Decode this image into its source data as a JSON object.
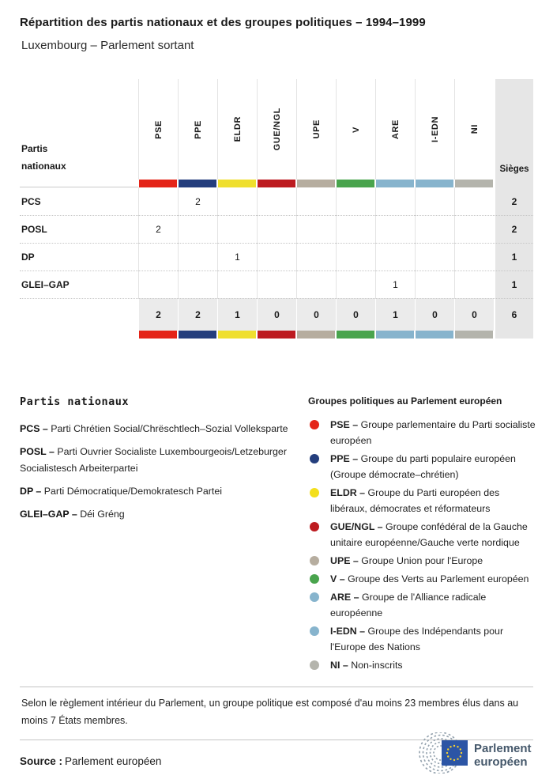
{
  "title": "Répartition des partis nationaux et des groupes politiques – 1994–1999",
  "subtitle": "Luxembourg – Parlement sortant",
  "table": {
    "corner_label": "Partis nationaux",
    "seats_label": "Sièges",
    "groups": [
      {
        "code": "PSE",
        "color": "#e42418"
      },
      {
        "code": "PPE",
        "color": "#243e7d"
      },
      {
        "code": "ELDR",
        "color": "#efdf2e"
      },
      {
        "code": "GUE/NGL",
        "color": "#bd1b20"
      },
      {
        "code": "UPE",
        "color": "#b6ad9f"
      },
      {
        "code": "V",
        "color": "#49a44d"
      },
      {
        "code": "ARE",
        "color": "#87b4cd"
      },
      {
        "code": "I-EDN",
        "color": "#87b4cd"
      },
      {
        "code": "NI",
        "color": "#b4b4ac"
      }
    ],
    "rows": [
      {
        "party": "PCS",
        "values": [
          "",
          "2",
          "",
          "",
          "",
          "",
          "",
          "",
          ""
        ],
        "seats": "2"
      },
      {
        "party": "POSL",
        "values": [
          "2",
          "",
          "",
          "",
          "",
          "",
          "",
          "",
          ""
        ],
        "seats": "2"
      },
      {
        "party": "DP",
        "values": [
          "",
          "",
          "1",
          "",
          "",
          "",
          "",
          "",
          ""
        ],
        "seats": "1"
      },
      {
        "party": "GLEI–GAP",
        "values": [
          "",
          "",
          "",
          "",
          "",
          "",
          "1",
          "",
          ""
        ],
        "seats": "1"
      }
    ],
    "totals": {
      "values": [
        "2",
        "2",
        "1",
        "0",
        "0",
        "0",
        "1",
        "0",
        "0"
      ],
      "seats": "6"
    }
  },
  "chart_data": {
    "type": "table",
    "title": "Répartition des partis nationaux et des groupes politiques – 1994–1999",
    "subtitle": "Luxembourg – Parlement sortant",
    "columns": [
      "PSE",
      "PPE",
      "ELDR",
      "GUE/NGL",
      "UPE",
      "V",
      "ARE",
      "I-EDN",
      "NI",
      "Sièges"
    ],
    "rows": [
      {
        "party": "PCS",
        "PPE": 2,
        "Sièges": 2
      },
      {
        "party": "POSL",
        "PSE": 2,
        "Sièges": 2
      },
      {
        "party": "DP",
        "ELDR": 1,
        "Sièges": 1
      },
      {
        "party": "GLEI–GAP",
        "ARE": 1,
        "Sièges": 1
      }
    ],
    "totals": {
      "PSE": 2,
      "PPE": 2,
      "ELDR": 1,
      "GUE/NGL": 0,
      "UPE": 0,
      "V": 0,
      "ARE": 1,
      "I-EDN": 0,
      "NI": 0,
      "Sièges": 6
    }
  },
  "legend_parties": {
    "heading": "Partis nationaux",
    "items": [
      {
        "abbr": "PCS –",
        "name": "Parti Chrétien Social/Chrëschtlech–Sozial Volleksparte"
      },
      {
        "abbr": "POSL –",
        "name": "Parti Ouvrier Socialiste Luxembourgeois/Letzeburger Socialistesch Arbeiterpartei"
      },
      {
        "abbr": "DP –",
        "name": "Parti Démocratique/Demokratesch Partei"
      },
      {
        "abbr": "GLEI–GAP –",
        "name": "Déi Gréng"
      }
    ]
  },
  "legend_groups": {
    "heading": "Groupes politiques au Parlement européen",
    "items": [
      {
        "abbr": "PSE –",
        "name": "Groupe parlementaire du Parti socialiste européen",
        "color": "#e42418"
      },
      {
        "abbr": "PPE –",
        "name": "Groupe du parti populaire européen (Groupe démocrate–chrétien)",
        "color": "#243e7d"
      },
      {
        "abbr": "ELDR –",
        "name": "Groupe du Parti européen des libéraux, démocrates et réformateurs",
        "color": "#f3df1c"
      },
      {
        "abbr": "GUE/NGL –",
        "name": "Groupe confédéral de la Gauche unitaire européenne/Gauche verte nordique",
        "color": "#bd1b20"
      },
      {
        "abbr": "UPE –",
        "name": "Groupe Union pour l'Europe",
        "color": "#b6ad9f"
      },
      {
        "abbr": "V –",
        "name": "Groupe des Verts au Parlement européen",
        "color": "#49a44d"
      },
      {
        "abbr": "ARE –",
        "name": "Groupe de l'Alliance radicale européenne",
        "color": "#87b4cd"
      },
      {
        "abbr": "I-EDN –",
        "name": "Groupe des Indépendants pour l'Europe des Nations",
        "color": "#87b4cd"
      },
      {
        "abbr": "NI –",
        "name": "Non-inscrits",
        "color": "#b4b4ac"
      }
    ]
  },
  "note": "Selon le règlement intérieur du Parlement, un groupe politique est composé d'au moins 23 membres élus dans au moins 7 États membres.",
  "source_label": "Source :",
  "source_value": "Parlement européen",
  "logo": {
    "line1": "Parlement",
    "line2": "européen",
    "flag_color": "#2c55a5",
    "star_color": "#f8d12e",
    "arc_color": "#93a1ad"
  }
}
